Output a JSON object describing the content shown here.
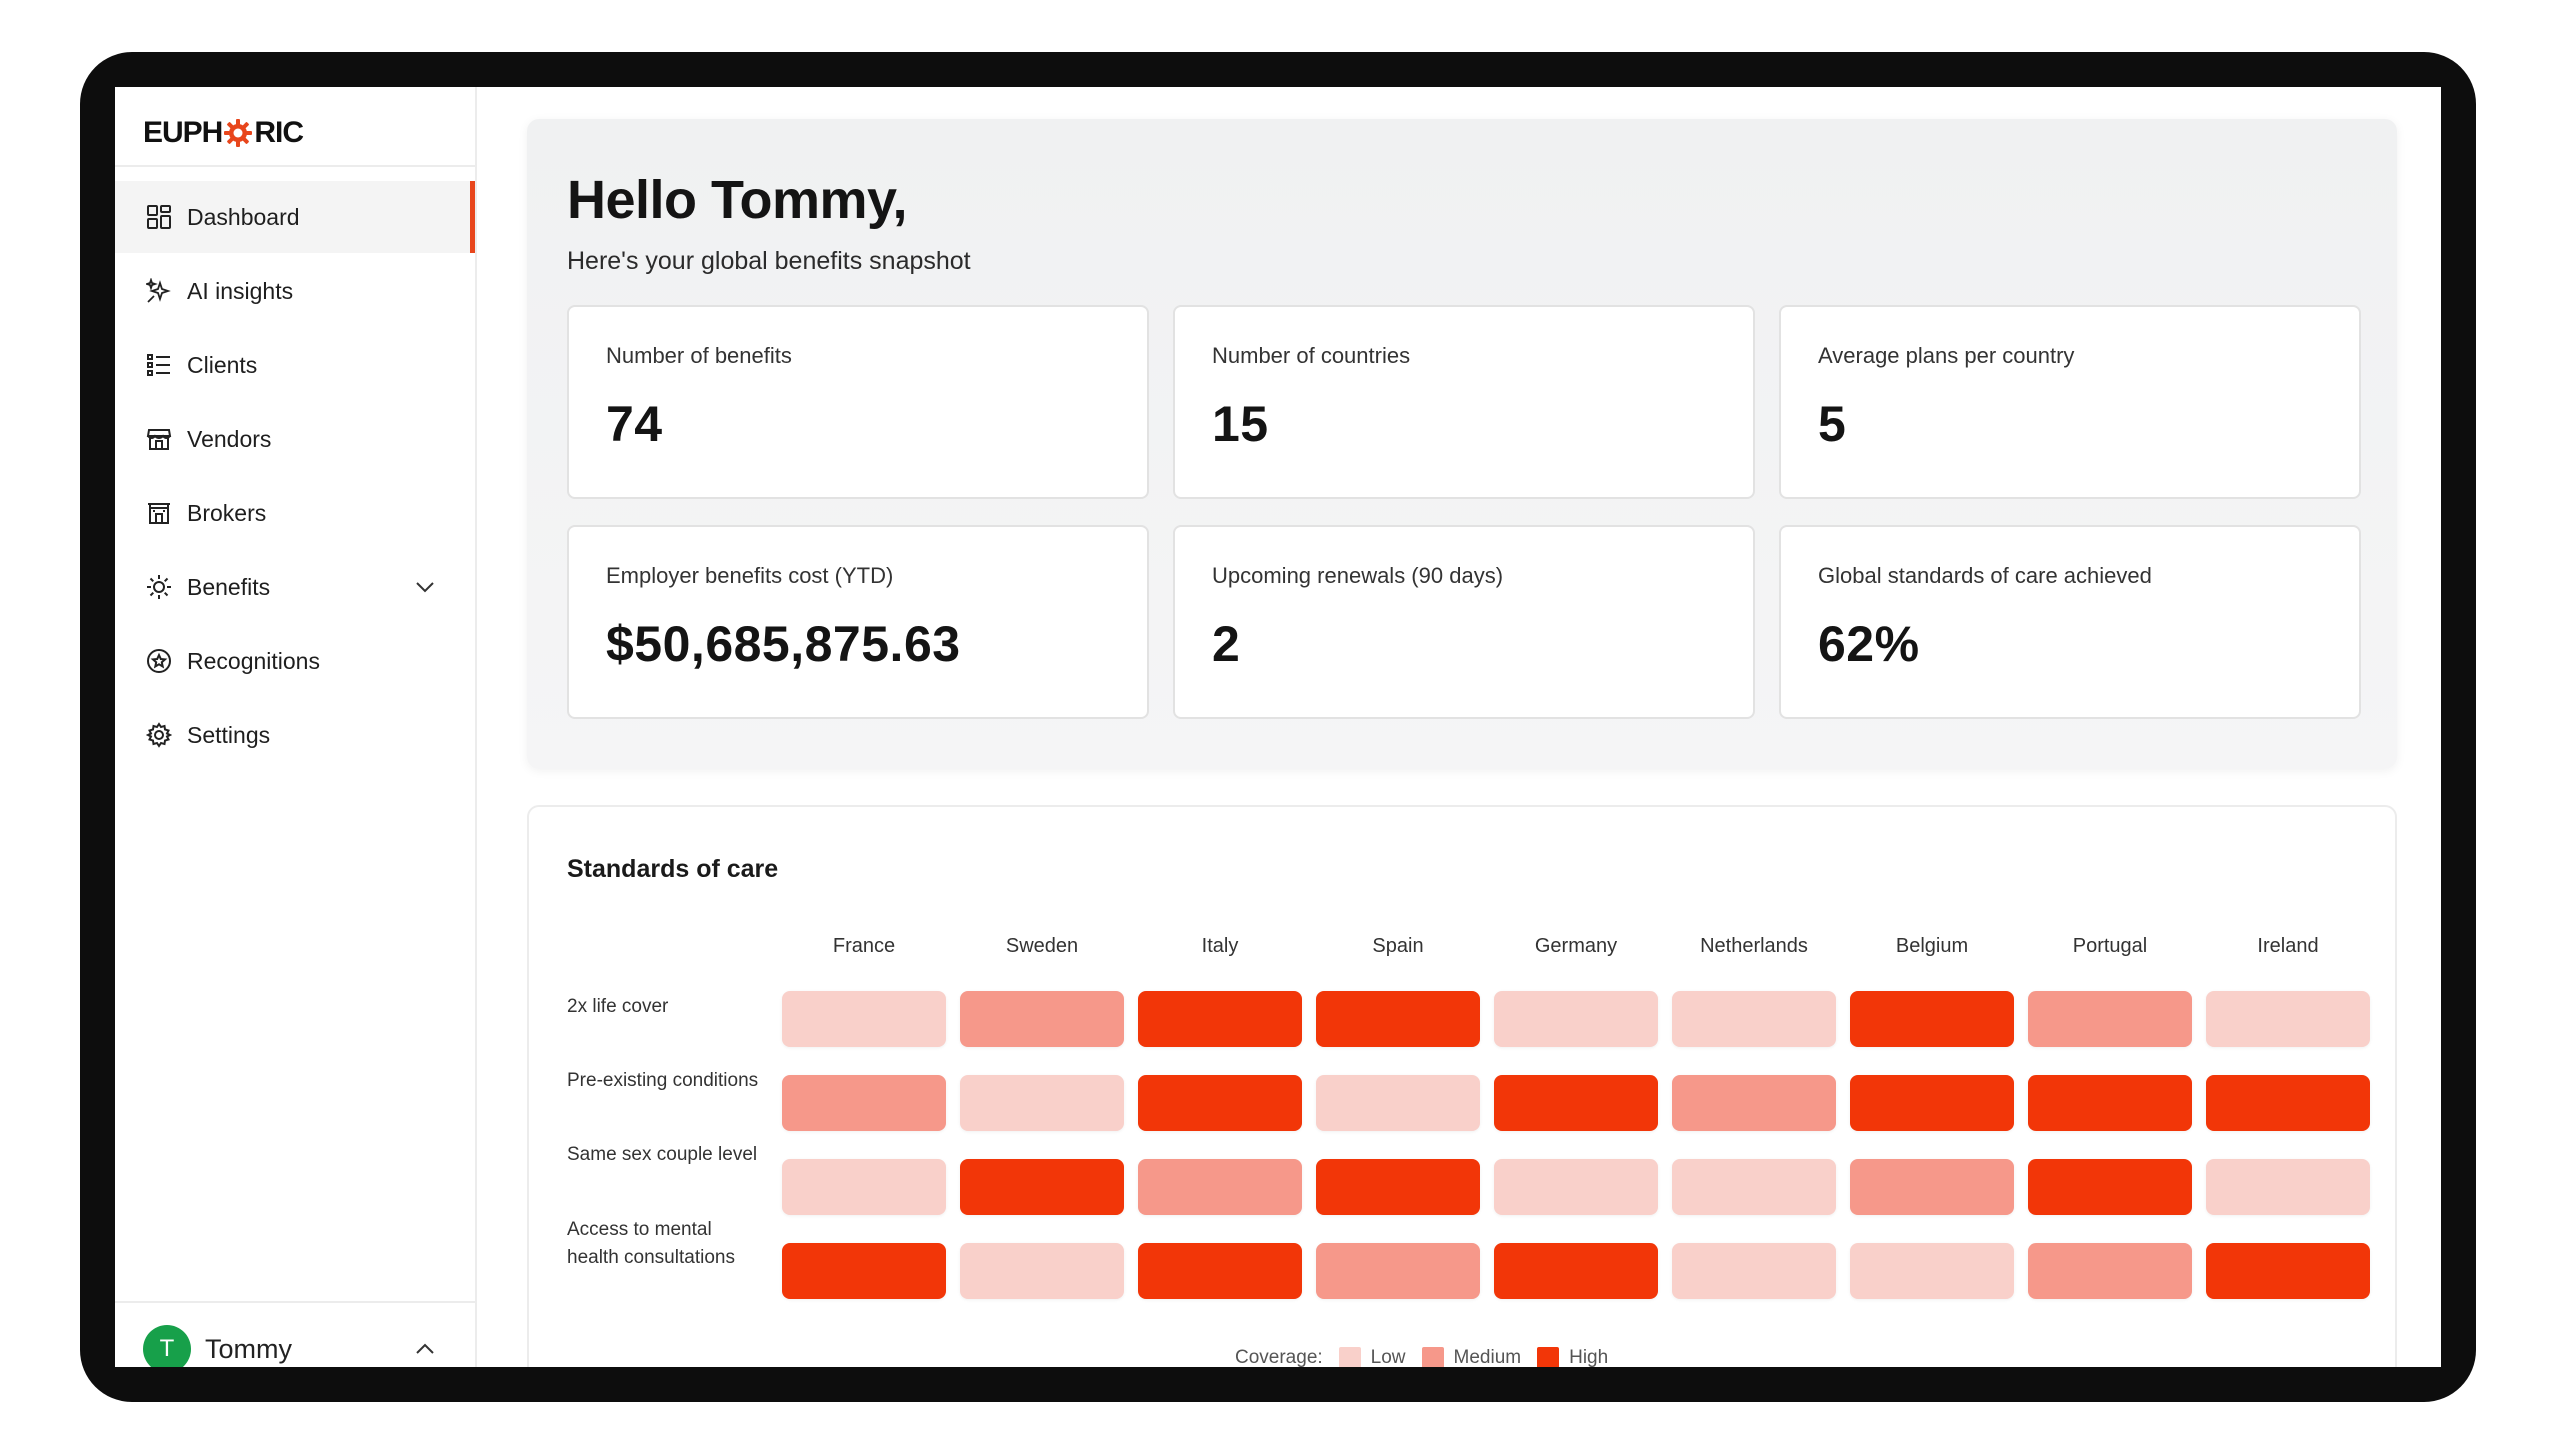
{
  "app": {
    "logo_text_before": "EUPH",
    "logo_text_after": "RIC",
    "accent_color": "#e8461c"
  },
  "sidebar": {
    "items": [
      {
        "label": "Dashboard",
        "icon": "grid-icon",
        "active": true
      },
      {
        "label": "AI insights",
        "icon": "sparkles-icon"
      },
      {
        "label": "Clients",
        "icon": "list-icon"
      },
      {
        "label": "Vendors",
        "icon": "store-icon"
      },
      {
        "label": "Brokers",
        "icon": "building-icon"
      },
      {
        "label": "Benefits",
        "icon": "sun-icon",
        "expandable": true
      },
      {
        "label": "Recognitions",
        "icon": "award-icon"
      },
      {
        "label": "Settings",
        "icon": "gear-icon"
      }
    ],
    "user": {
      "initial": "T",
      "name": "Tommy",
      "avatar_color": "#17a04a"
    }
  },
  "main": {
    "greeting": "Hello Tommy,",
    "subtitle": "Here's your global benefits snapshot",
    "stats": [
      {
        "label": "Number of benefits",
        "value": "74"
      },
      {
        "label": "Number of countries",
        "value": "15"
      },
      {
        "label": "Average plans per country",
        "value": "5"
      },
      {
        "label": "Employer benefits cost (YTD)",
        "value": "$50,685,875.63"
      },
      {
        "label": "Upcoming renewals (90 days)",
        "value": "2"
      },
      {
        "label": "Global standards of care achieved",
        "value": "62%"
      }
    ],
    "standards": {
      "title": "Standards of care",
      "countries": [
        "France",
        "Sweden",
        "Italy",
        "Spain",
        "Germany",
        "Netherlands",
        "Belgium",
        "Portugal",
        "Ireland"
      ],
      "rows": [
        {
          "label": "2x life cover",
          "levels": [
            "low",
            "medium",
            "high",
            "high",
            "low",
            "low",
            "high",
            "medium",
            "low"
          ]
        },
        {
          "label": "Pre-existing conditions",
          "levels": [
            "medium",
            "low",
            "high",
            "low",
            "high",
            "medium",
            "high",
            "high",
            "high"
          ]
        },
        {
          "label": "Same sex couple level",
          "levels": [
            "low",
            "high",
            "medium",
            "high",
            "low",
            "low",
            "medium",
            "high",
            "low"
          ]
        },
        {
          "label": "Access to mental health consultations",
          "levels": [
            "high",
            "low",
            "high",
            "medium",
            "high",
            "low",
            "low",
            "medium",
            "high"
          ]
        }
      ],
      "legend": {
        "label": "Coverage:",
        "low": "Low",
        "medium": "Medium",
        "high": "High"
      },
      "colors": {
        "low": "#f9d0ca",
        "medium": "#f6988a",
        "high": "#f23608"
      }
    }
  }
}
